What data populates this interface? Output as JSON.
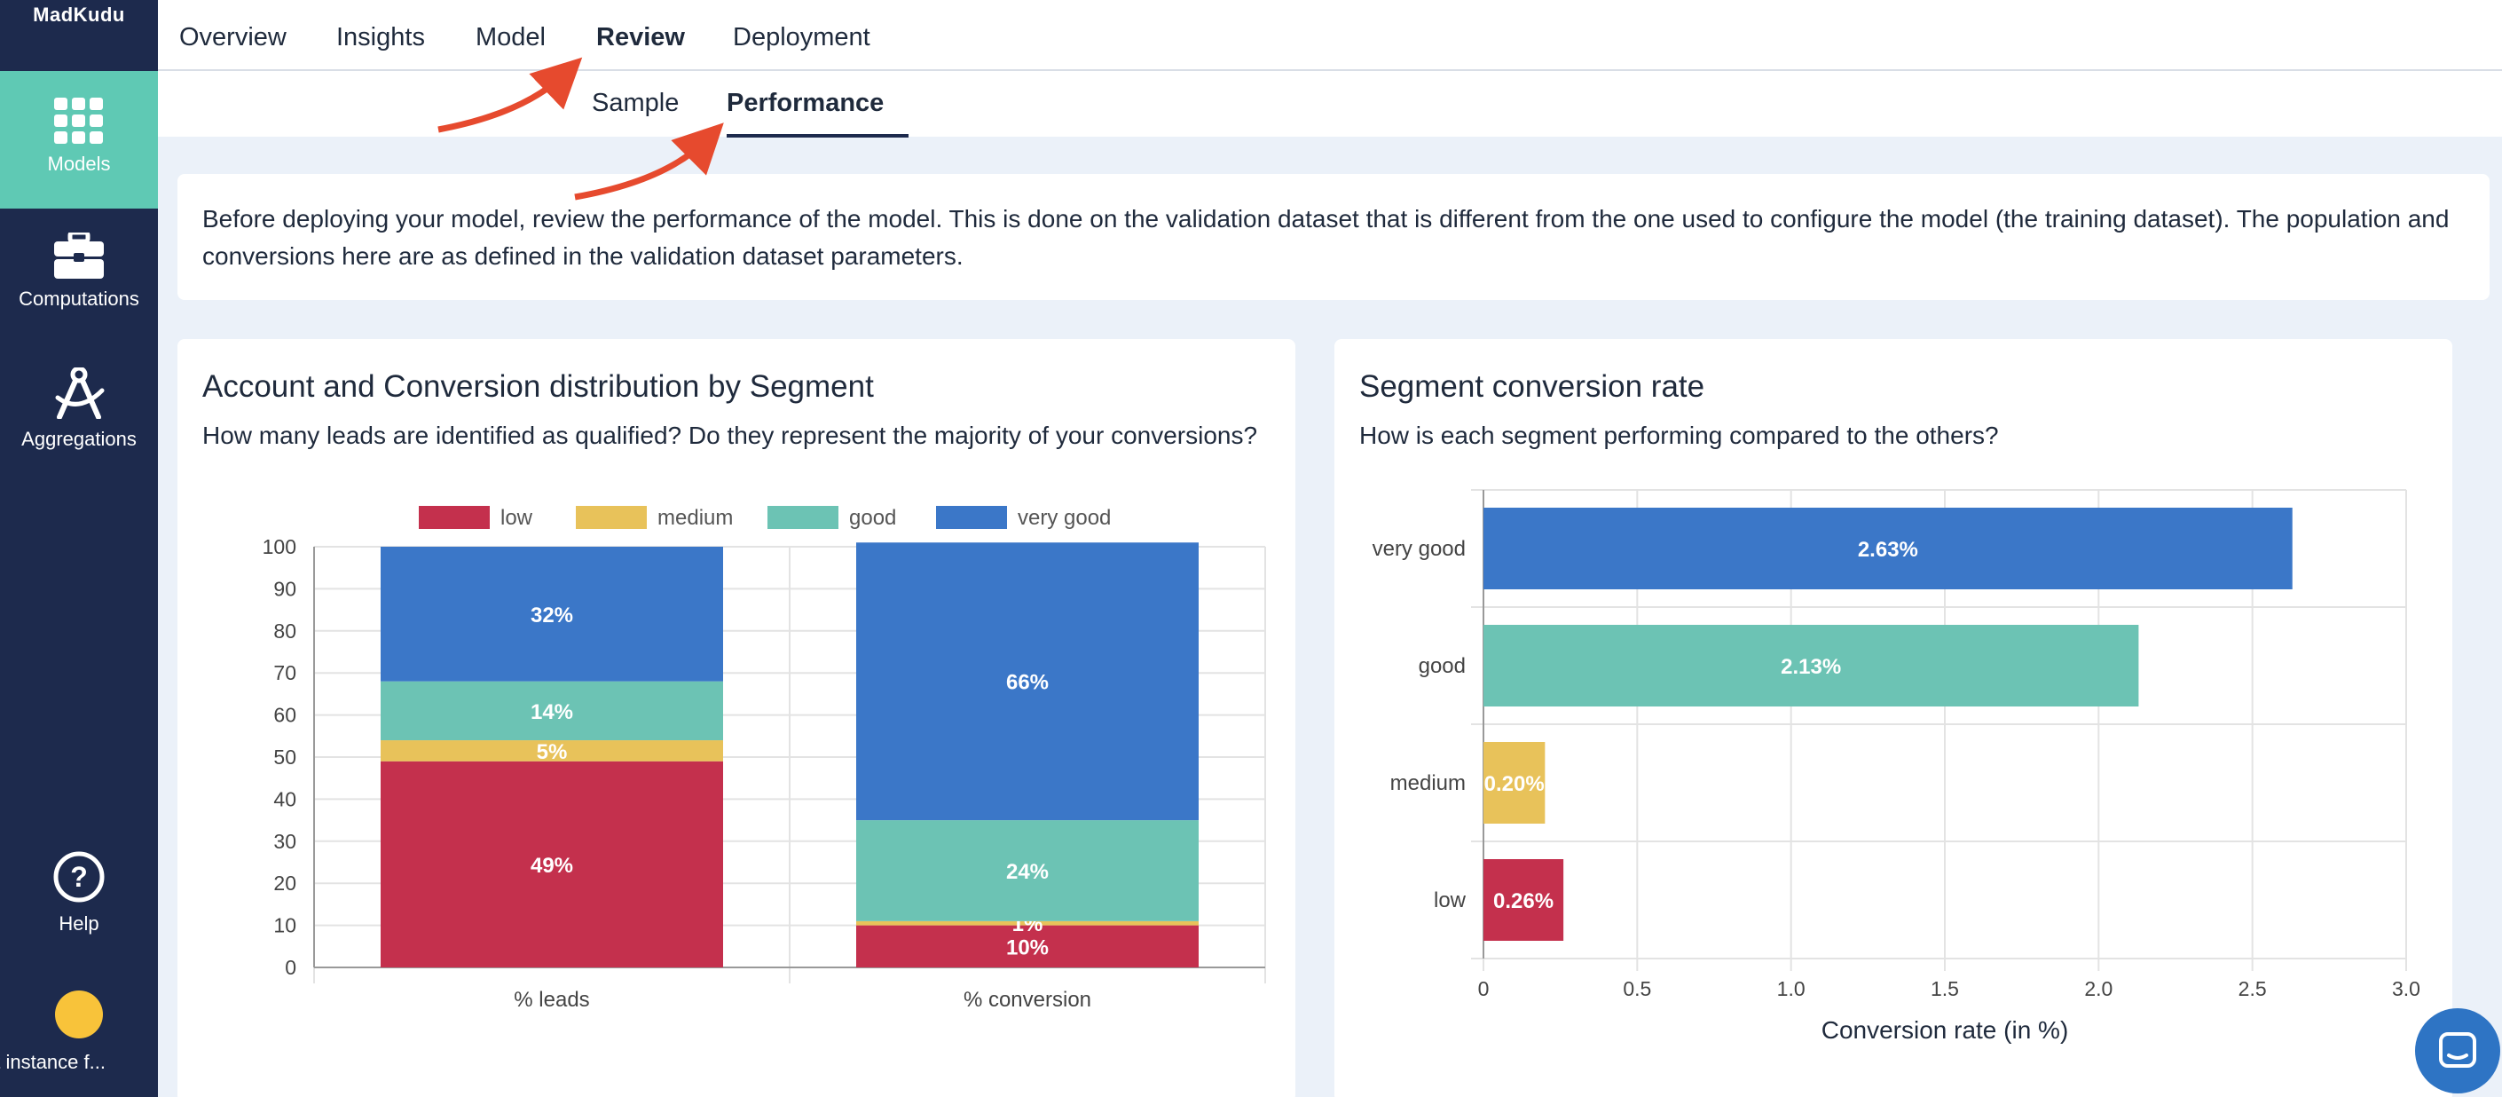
{
  "app": {
    "brand": "MadKudu",
    "instance": "Test instance f..."
  },
  "sidebar": {
    "items": [
      {
        "label": "Models",
        "icon": "grid-icon",
        "active": true
      },
      {
        "label": "Computations",
        "icon": "toolbox-icon",
        "active": false
      },
      {
        "label": "Aggregations",
        "icon": "compass-icon",
        "active": false
      },
      {
        "label": "Help",
        "icon": "help-icon",
        "active": false
      }
    ]
  },
  "tabs": {
    "items": [
      "Overview",
      "Insights",
      "Model",
      "Review",
      "Deployment"
    ],
    "active": "Review"
  },
  "subtabs": {
    "items": [
      "Sample",
      "Performance"
    ],
    "active": "Performance"
  },
  "intro": {
    "text": "Before deploying your model, review the performance of the model. This is done on the validation dataset that is different from the one used to configure the model (the training dataset). The population and conversions here are as defined in the validation dataset parameters."
  },
  "left_card": {
    "title": "Account and Conversion distribution by Segment",
    "subtitle": "How many leads are identified as qualified? Do they represent the majority of your conversions?"
  },
  "right_card": {
    "title": "Segment conversion rate",
    "subtitle": "How is each segment performing compared to the others?"
  },
  "colors": {
    "low": "#c4304d",
    "medium": "#e8c25a",
    "good": "#6cc3b4",
    "very_good": "#3b77c8"
  },
  "chart_data": [
    {
      "type": "bar",
      "stacked": true,
      "title": "Account and Conversion distribution by Segment",
      "categories": [
        "% leads",
        "% conversion"
      ],
      "series": [
        {
          "name": "low",
          "values": [
            49,
            10
          ]
        },
        {
          "name": "medium",
          "values": [
            5,
            1
          ]
        },
        {
          "name": "good",
          "values": [
            14,
            24
          ]
        },
        {
          "name": "very good",
          "values": [
            32,
            66
          ]
        }
      ],
      "data_labels": [
        [
          "49%",
          "5%",
          "14%",
          "32%"
        ],
        [
          "10%",
          "1%",
          "24%",
          "66%"
        ]
      ],
      "ylim": [
        0,
        100
      ],
      "yticks": [
        0,
        10,
        20,
        30,
        40,
        50,
        60,
        70,
        80,
        90,
        100
      ],
      "legend": "top",
      "grid": true
    },
    {
      "type": "bar",
      "orientation": "horizontal",
      "title": "Segment conversion rate",
      "categories": [
        "very good",
        "good",
        "medium",
        "low"
      ],
      "values": [
        2.63,
        2.13,
        0.2,
        0.26
      ],
      "data_labels": [
        "2.63%",
        "2.13%",
        "0.20%",
        "0.26%"
      ],
      "xlabel": "Conversion rate (in %)",
      "xlim": [
        0,
        3.0
      ],
      "xticks": [
        "0",
        "0.5",
        "1.0",
        "1.5",
        "2.0",
        "2.5",
        "3.0"
      ],
      "grid": true
    }
  ]
}
